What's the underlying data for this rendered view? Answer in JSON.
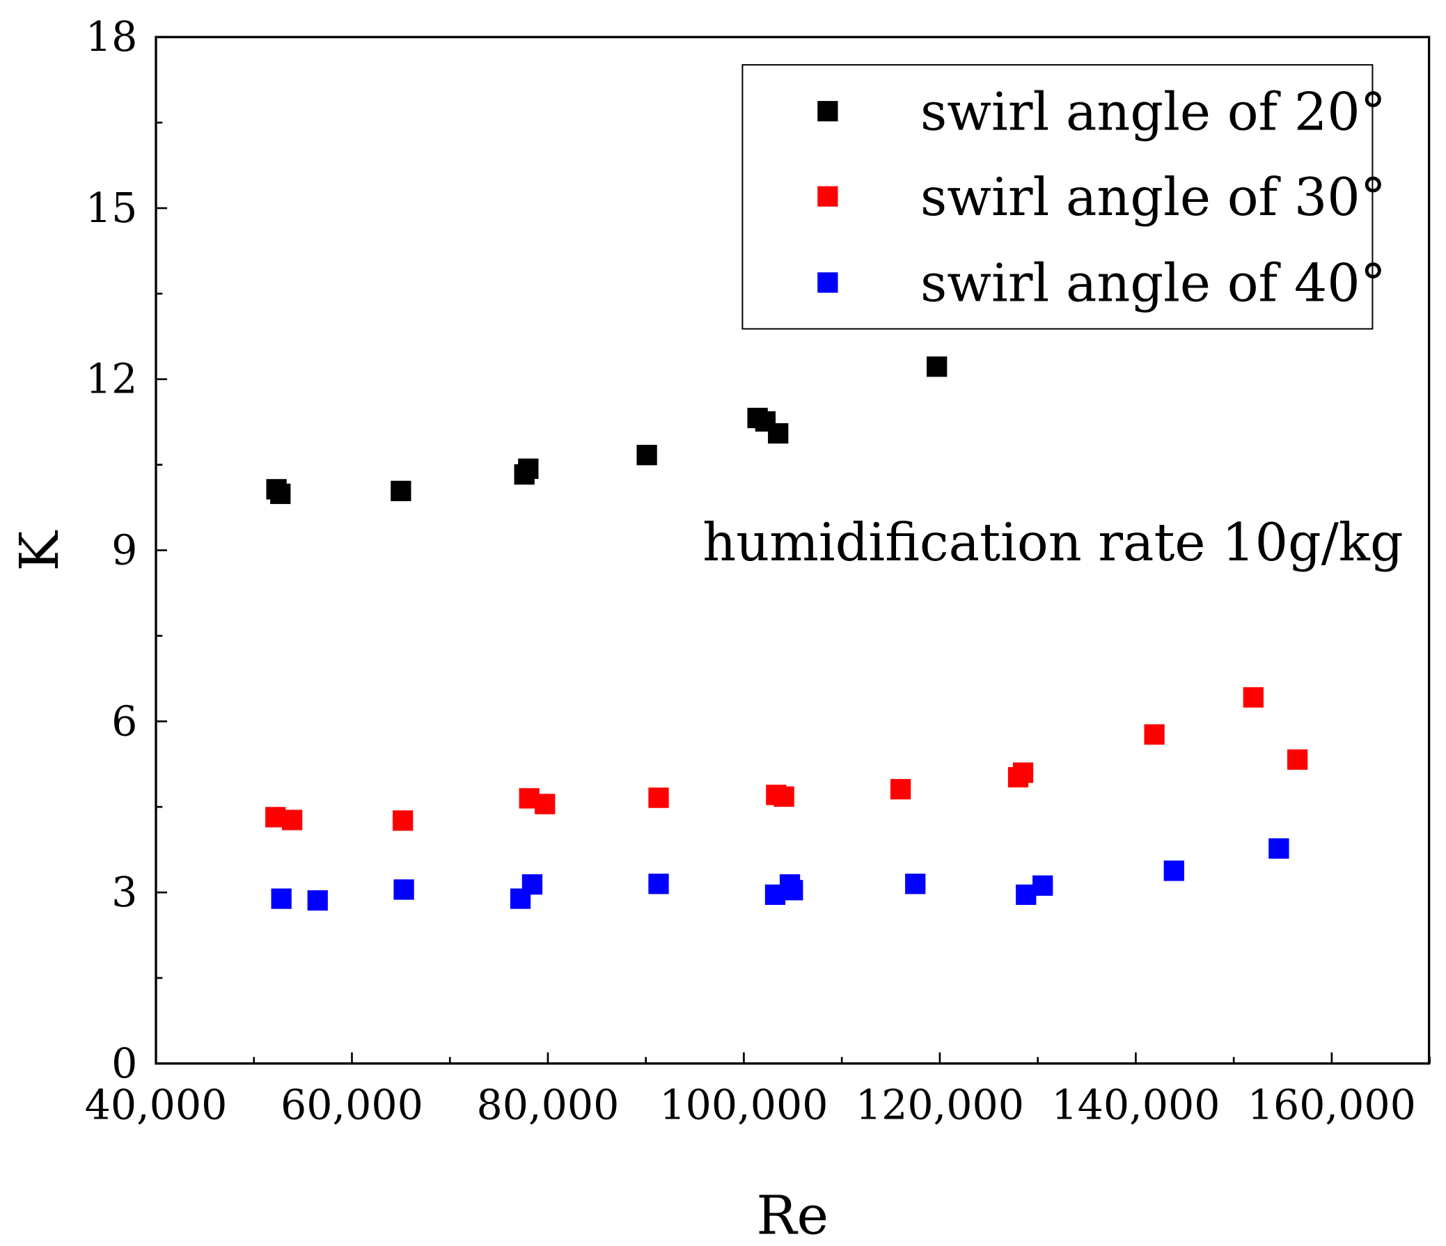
{
  "chart_data": {
    "type": "scatter",
    "title": "",
    "xlabel": "Re",
    "ylabel": "K",
    "xlim": [
      40000,
      170000
    ],
    "ylim": [
      0,
      18
    ],
    "xticks": [
      40000,
      60000,
      80000,
      100000,
      120000,
      140000,
      160000
    ],
    "xtick_labels": [
      "40,000",
      "60,000",
      "80,000",
      "100,000",
      "120,000",
      "140,000",
      "160,000"
    ],
    "yticks": [
      0,
      3,
      6,
      9,
      12,
      15,
      18
    ],
    "ytick_labels": [
      "0",
      "3",
      "6",
      "9",
      "12",
      "15",
      "18"
    ],
    "grid": false,
    "legend_position": "top-right",
    "annotation": "humidification rate 10g/kg",
    "series": [
      {
        "name": "swirl angle of 20°",
        "color": "#000000",
        "x": [
          52300,
          52700,
          65000,
          77600,
          78000,
          90100,
          101400,
          102200,
          103500,
          119700
        ],
        "y": [
          10.07,
          9.99,
          10.04,
          10.33,
          10.43,
          10.67,
          11.32,
          11.26,
          11.05,
          12.22
        ]
      },
      {
        "name": "swirl angle of 30°",
        "color": "#ff0000",
        "x": [
          52200,
          53900,
          65200,
          78100,
          79700,
          91300,
          103300,
          104100,
          116000,
          128000,
          128500,
          141900,
          152000,
          156500
        ],
        "y": [
          4.32,
          4.27,
          4.26,
          4.65,
          4.55,
          4.66,
          4.71,
          4.68,
          4.81,
          5.02,
          5.1,
          5.77,
          6.42,
          5.33
        ]
      },
      {
        "name": "swirl angle of 40°",
        "color": "#0000ff",
        "x": [
          52800,
          56500,
          65300,
          77200,
          78400,
          91300,
          103200,
          104700,
          105000,
          117500,
          128800,
          130500,
          143900,
          154600
        ],
        "y": [
          2.89,
          2.86,
          3.05,
          2.89,
          3.14,
          3.15,
          2.96,
          3.14,
          3.04,
          3.15,
          2.96,
          3.12,
          3.38,
          3.77
        ]
      }
    ]
  }
}
